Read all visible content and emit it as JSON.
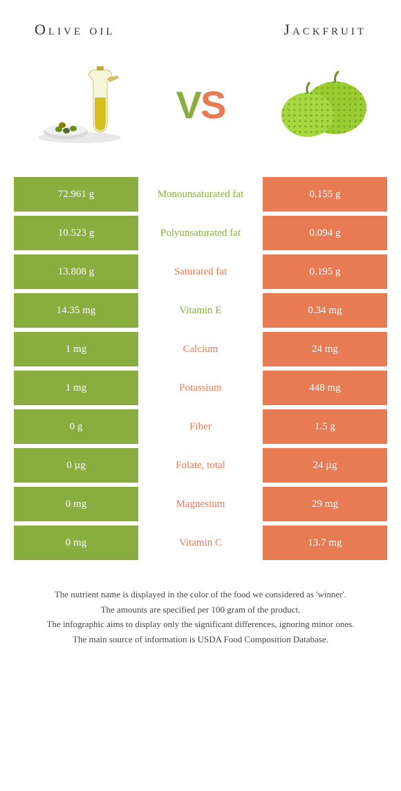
{
  "leftFood": {
    "name": "Olive oil"
  },
  "rightFood": {
    "name": "Jackfruit"
  },
  "vs": {
    "v": "V",
    "s": "S"
  },
  "colors": {
    "green": "#8aad3f",
    "orange": "#e67b54",
    "text": "#333333",
    "bg": "#ffffff"
  },
  "rows": [
    {
      "left": "72.961 g",
      "label": "Monounsaturated fat",
      "right": "0.155 g",
      "winner": "left"
    },
    {
      "left": "10.523 g",
      "label": "Polyunsaturated fat",
      "right": "0.094 g",
      "winner": "left"
    },
    {
      "left": "13.808 g",
      "label": "Saturated fat",
      "right": "0.195 g",
      "winner": "right"
    },
    {
      "left": "14.35 mg",
      "label": "Vitamin E",
      "right": "0.34 mg",
      "winner": "left"
    },
    {
      "left": "1 mg",
      "label": "Calcium",
      "right": "24 mg",
      "winner": "right"
    },
    {
      "left": "1 mg",
      "label": "Potassium",
      "right": "448 mg",
      "winner": "right"
    },
    {
      "left": "0 g",
      "label": "Fiber",
      "right": "1.5 g",
      "winner": "right"
    },
    {
      "left": "0 µg",
      "label": "Folate, total",
      "right": "24 µg",
      "winner": "right"
    },
    {
      "left": "0 mg",
      "label": "Magnesium",
      "right": "29 mg",
      "winner": "right"
    },
    {
      "left": "0 mg",
      "label": "Vitamin C",
      "right": "13.7 mg",
      "winner": "right"
    }
  ],
  "footer": {
    "l1": "The nutrient name is displayed in the color of the food we considered as 'winner'.",
    "l2": "The amounts are specified per 100 gram of the product.",
    "l3": "The infographic aims to display only the significant differences, ignoring minor ones.",
    "l4": "The main source of information is USDA Food Composition Database."
  }
}
